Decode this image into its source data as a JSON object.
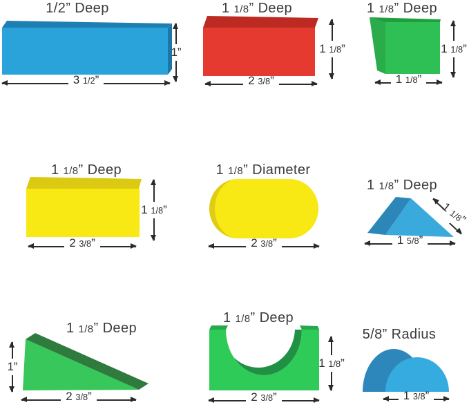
{
  "blocks": [
    {
      "name": "blue-plank",
      "label": "1/2” Deep",
      "width": "3 1/2”",
      "height": "1”",
      "colors": {
        "front": "#2AA2DA",
        "top": "#1E80B2",
        "side": "#1C76A6"
      }
    },
    {
      "name": "red-block",
      "label": "1 1/8” Deep",
      "width": "2 3/8”",
      "height": "1 1/8”",
      "colors": {
        "front": "#E43A2F",
        "top": "#BC2A22"
      }
    },
    {
      "name": "green-cube",
      "label": "1 1/8” Deep",
      "width": "1 1/8”",
      "height": "1 1/8”",
      "colors": {
        "front": "#2FC055",
        "top": "#1F9E3E",
        "side": "#29AC49"
      }
    },
    {
      "name": "yellow-block",
      "label": "1 1/8” Deep",
      "width": "2 3/8”",
      "height": "1 1/8”",
      "colors": {
        "front": "#F8E813",
        "top": "#DCC911"
      }
    },
    {
      "name": "yellow-cylinder",
      "label": "1 1/8” Diameter",
      "width": "2 3/8”",
      "colors": {
        "front": "#F8E813",
        "cap": "#E0CC12"
      }
    },
    {
      "name": "blue-triangle",
      "label": "1 1/8” Deep",
      "width": "1 5/8”",
      "slope": "1 1/8”",
      "colors": {
        "front": "#3AA9DC",
        "side": "#2C86B8"
      }
    },
    {
      "name": "green-ramp",
      "label": "1 1/8” Deep",
      "width": "2 3/8”",
      "height": "1”",
      "colors": {
        "front": "#38C75A",
        "top": "#2E7B3D"
      }
    },
    {
      "name": "green-arch",
      "label": "1 1/8” Deep",
      "width": "2 3/8”",
      "height": "1 1/8”",
      "colors": {
        "front": "#2FCB58",
        "inner": "#1F9044",
        "top": "#25A94B"
      }
    },
    {
      "name": "blue-half-cylinder",
      "label": "5/8” Radius",
      "width": "1 3/8”",
      "colors": {
        "front": "#36ABDF",
        "back": "#2E87BA"
      }
    }
  ]
}
